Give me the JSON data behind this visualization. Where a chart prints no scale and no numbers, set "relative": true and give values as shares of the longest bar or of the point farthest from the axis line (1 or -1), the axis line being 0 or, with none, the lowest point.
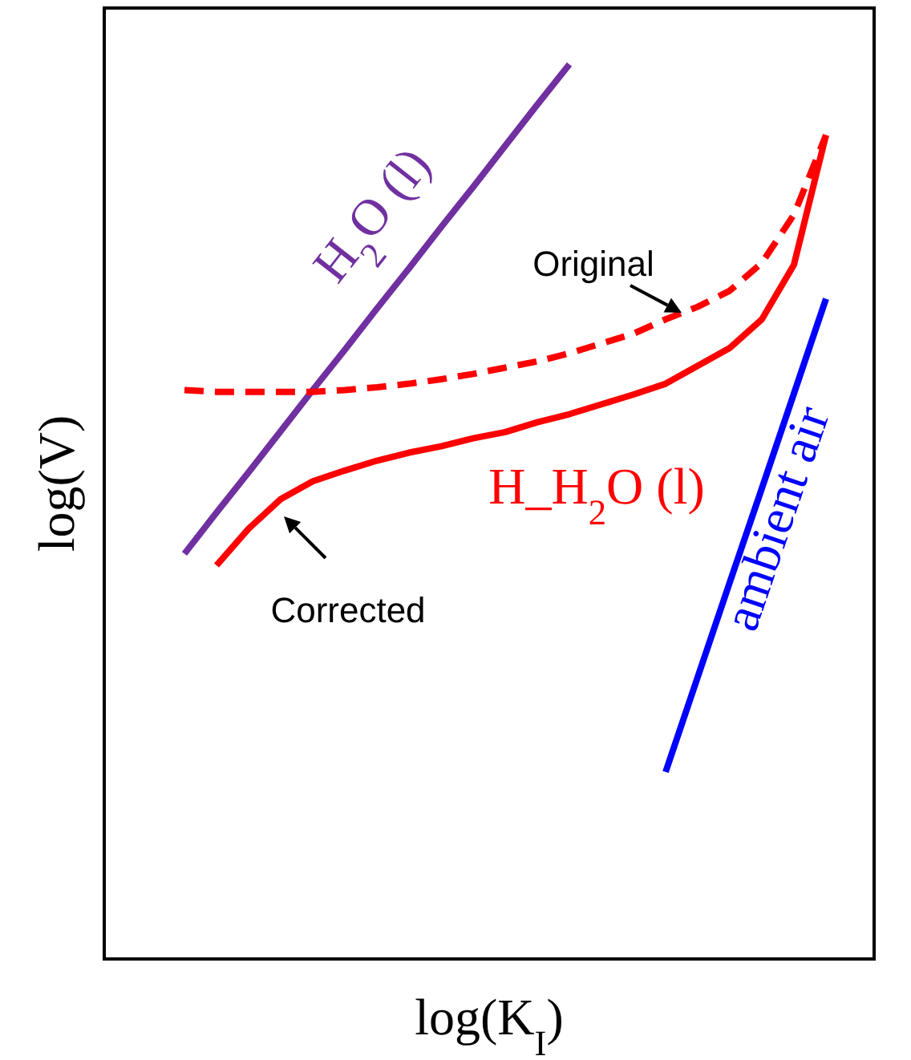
{
  "chart_data": {
    "type": "line",
    "relative": true,
    "xlabel": "log(K$_{I}$)",
    "ylabel": "log(V)",
    "categories": [
      null,
      null,
      null,
      null,
      null,
      null,
      null,
      null,
      null,
      null,
      null,
      null,
      null,
      null,
      null,
      null,
      null,
      null,
      null,
      null,
      null,
      null,
      null,
      null
    ],
    "series": [
      {
        "name": "H$_{2}$O (l)",
        "color": "#7030a0",
        "values": [
          null,
          null,
          0.453,
          0.499,
          0.544,
          0.59,
          0.636,
          0.681,
          0.727,
          0.772,
          0.818,
          0.863,
          0.909,
          0.955,
          1,
          null,
          null,
          null,
          null,
          null,
          null,
          null,
          null,
          null
        ]
      },
      {
        "color": "#ff0000",
        "line_style": "dashed",
        "values": [
          null,
          null,
          0.636,
          0.634,
          0.634,
          0.634,
          0.634,
          0.636,
          0.639,
          0.643,
          0.648,
          0.654,
          0.661,
          0.668,
          0.677,
          0.688,
          0.699,
          0.715,
          0.729,
          0.747,
          0.778,
          0.832,
          0.921,
          null
        ]
      },
      {
        "name": "H_H$_{2}$O (l)",
        "color": "#ff0000",
        "values": [
          null,
          null,
          null,
          0.44,
          0.481,
          0.514,
          0.534,
          0.546,
          0.557,
          0.566,
          0.573,
          0.582,
          0.589,
          0.6,
          0.609,
          0.62,
          0.631,
          0.643,
          0.663,
          0.683,
          0.715,
          0.776,
          0.921,
          null
        ]
      },
      {
        "name": "ambient air",
        "color": "#0000ff",
        "values": [
          null,
          null,
          null,
          null,
          null,
          null,
          null,
          null,
          null,
          null,
          null,
          null,
          null,
          null,
          null,
          null,
          null,
          0.209,
          0.315,
          0.421,
          0.526,
          0.632,
          0.738,
          null
        ]
      }
    ],
    "annotations": [
      "Original",
      "Corrected"
    ]
  }
}
